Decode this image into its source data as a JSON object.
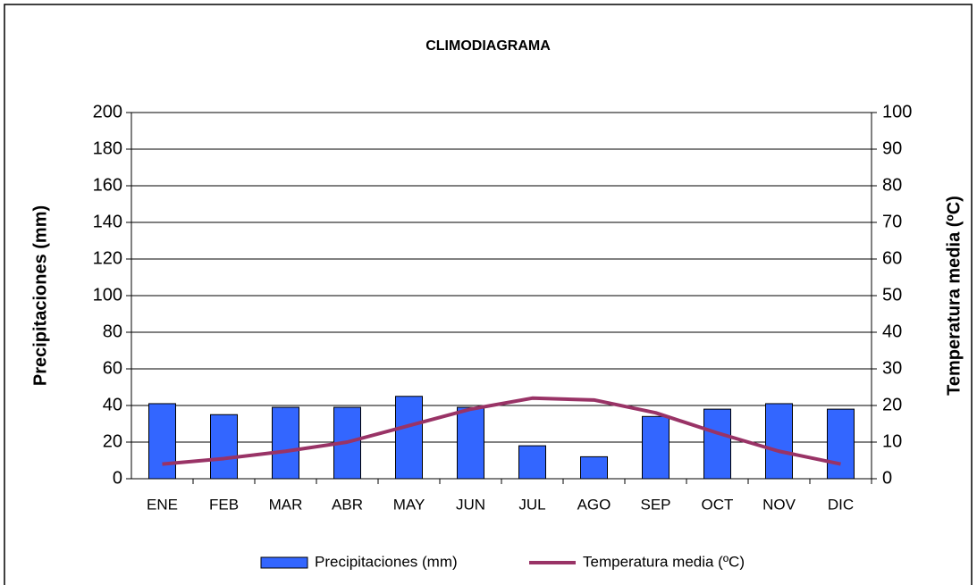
{
  "chart_data": {
    "type": "bar_line",
    "title": "CLIMODIAGRAMA",
    "categories": [
      "ENE",
      "FEB",
      "MAR",
      "ABR",
      "MAY",
      "JUN",
      "JUL",
      "AGO",
      "SEP",
      "OCT",
      "NOV",
      "DIC"
    ],
    "series": [
      {
        "name": "Precipitaciones (mm)",
        "type": "bar",
        "color": "#3366ff",
        "values": [
          41,
          35,
          39,
          39,
          45,
          39,
          18,
          12,
          34,
          38,
          41,
          38
        ]
      },
      {
        "name": "Temperatura media (ºC)",
        "type": "line",
        "axis": "y2",
        "color": "#993366",
        "values": [
          4,
          5.5,
          7.5,
          10,
          14.5,
          19,
          22,
          21.5,
          18,
          12.5,
          7.5,
          4
        ]
      }
    ],
    "ylabel": "Precipitaciones (mm)",
    "y2label": "Temperatura media (ºC)",
    "ylim": [
      0,
      200
    ],
    "yticks": [
      0,
      20,
      40,
      60,
      80,
      100,
      120,
      140,
      160,
      180,
      200
    ],
    "y2lim": [
      0,
      100
    ],
    "y2ticks": [
      0,
      10,
      20,
      30,
      40,
      50,
      60,
      70,
      80,
      90,
      100
    ],
    "grid": true,
    "legend": "bottom"
  }
}
